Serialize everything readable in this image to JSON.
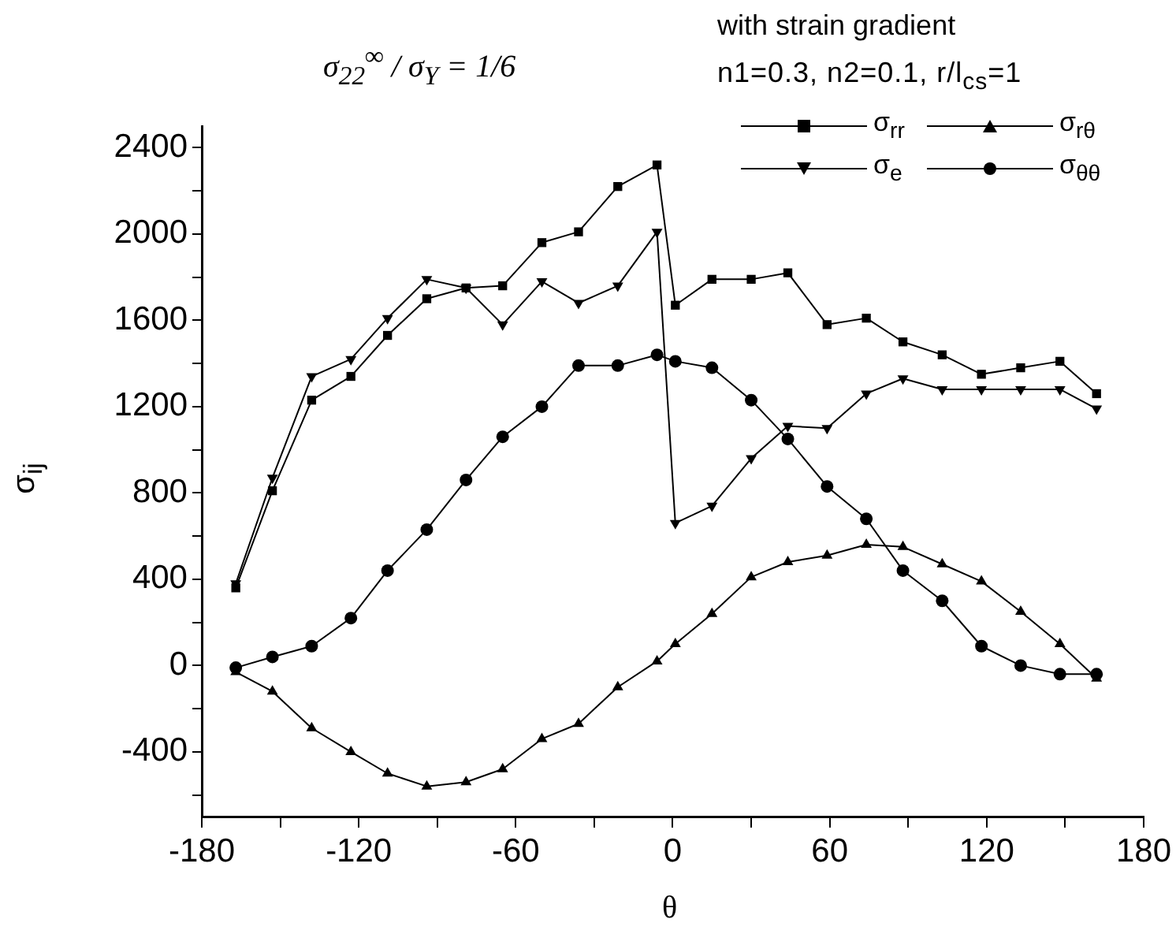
{
  "chart_data": {
    "type": "line",
    "xlabel": "θ",
    "ylabel": "σ$_{ij}$",
    "x": [
      -167,
      -153,
      -138,
      -123,
      -109,
      -94,
      -79,
      -65,
      -50,
      -36,
      -21,
      -6,
      1,
      15,
      30,
      44,
      59,
      74,
      88,
      103,
      118,
      133,
      148,
      162
    ],
    "series": [
      {
        "name": "σ$_{rr}$",
        "color": "#000000",
        "marker": "square",
        "values": [
          360,
          810,
          1230,
          1340,
          1530,
          1700,
          1750,
          1760,
          1960,
          2010,
          2220,
          2320,
          1670,
          1790,
          1790,
          1820,
          1580,
          1610,
          1500,
          1440,
          1350,
          1380,
          1410,
          1260
        ]
      },
      {
        "name": "σ$_{rθ}$",
        "color": "#000000",
        "marker": "triangle",
        "values": [
          -30,
          -120,
          -290,
          -400,
          -500,
          -560,
          -540,
          -480,
          -340,
          -270,
          -100,
          20,
          100,
          240,
          410,
          480,
          510,
          560,
          550,
          470,
          390,
          250,
          100,
          -60
        ]
      },
      {
        "name": "σ$_{e}$",
        "color": "#000000",
        "marker": "triangle-down",
        "values": [
          380,
          870,
          1340,
          1420,
          1610,
          1790,
          1750,
          1580,
          1780,
          1680,
          1760,
          2010,
          660,
          740,
          960,
          1110,
          1100,
          1260,
          1330,
          1280,
          1280,
          1280,
          1280,
          1190
        ]
      },
      {
        "name": "σ$_{θθ}$",
        "color": "#000000",
        "marker": "circle",
        "values": [
          -10,
          40,
          90,
          220,
          440,
          630,
          860,
          1060,
          1200,
          1390,
          1390,
          1440,
          1410,
          1380,
          1230,
          1050,
          830,
          680,
          440,
          300,
          90,
          0,
          -40,
          -40
        ]
      }
    ],
    "xlim": [
      -180,
      180
    ],
    "xticks": [
      -180,
      {
        "value": -150,
        "label": null
      },
      -120,
      {
        "value": -90,
        "label": null
      },
      -60,
      {
        "value": -30,
        "label": null
      },
      0,
      {
        "value": 30,
        "label": null
      },
      60,
      {
        "value": 90,
        "label": null
      },
      120,
      {
        "value": 150,
        "label": null
      },
      180
    ],
    "ylim": [
      -700,
      2500
    ],
    "yticks": [
      {
        "value": -600,
        "label": null
      },
      -400,
      {
        "value": -200,
        "label": null
      },
      0,
      {
        "value": 200,
        "label": null
      },
      400,
      {
        "value": 600,
        "label": null
      },
      800,
      {
        "value": 1000,
        "label": null
      },
      1200,
      {
        "value": 1400,
        "label": null
      },
      1600,
      {
        "value": 1800,
        "label": null
      },
      2000,
      {
        "value": 2200,
        "label": null
      },
      2400
    ],
    "annotations": [
      "σ$_{22}$$^{∞}$ / σ$_{Y}$ = 1/6",
      "with strain gradient",
      "n1=0.3,  n2=0.1,  r/l$_{cs}$=1"
    ],
    "legend": "top right",
    "line_style": "solid",
    "grid": false
  }
}
